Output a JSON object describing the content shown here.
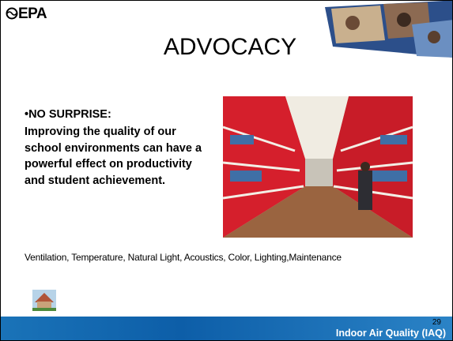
{
  "header": {
    "logo": "EPA",
    "title": "ADVOCACY"
  },
  "body": {
    "heading": "•NO SURPRISE:",
    "text": "Improving the quality of our school environments can have a powerful effect on productivity and student achievement.",
    "factors": "Ventilation, Temperature, Natural Light, Acoustics, Color, Lighting,Maintenance"
  },
  "footer": {
    "page": "29",
    "program": "Indoor Air Quality (IAQ)"
  }
}
